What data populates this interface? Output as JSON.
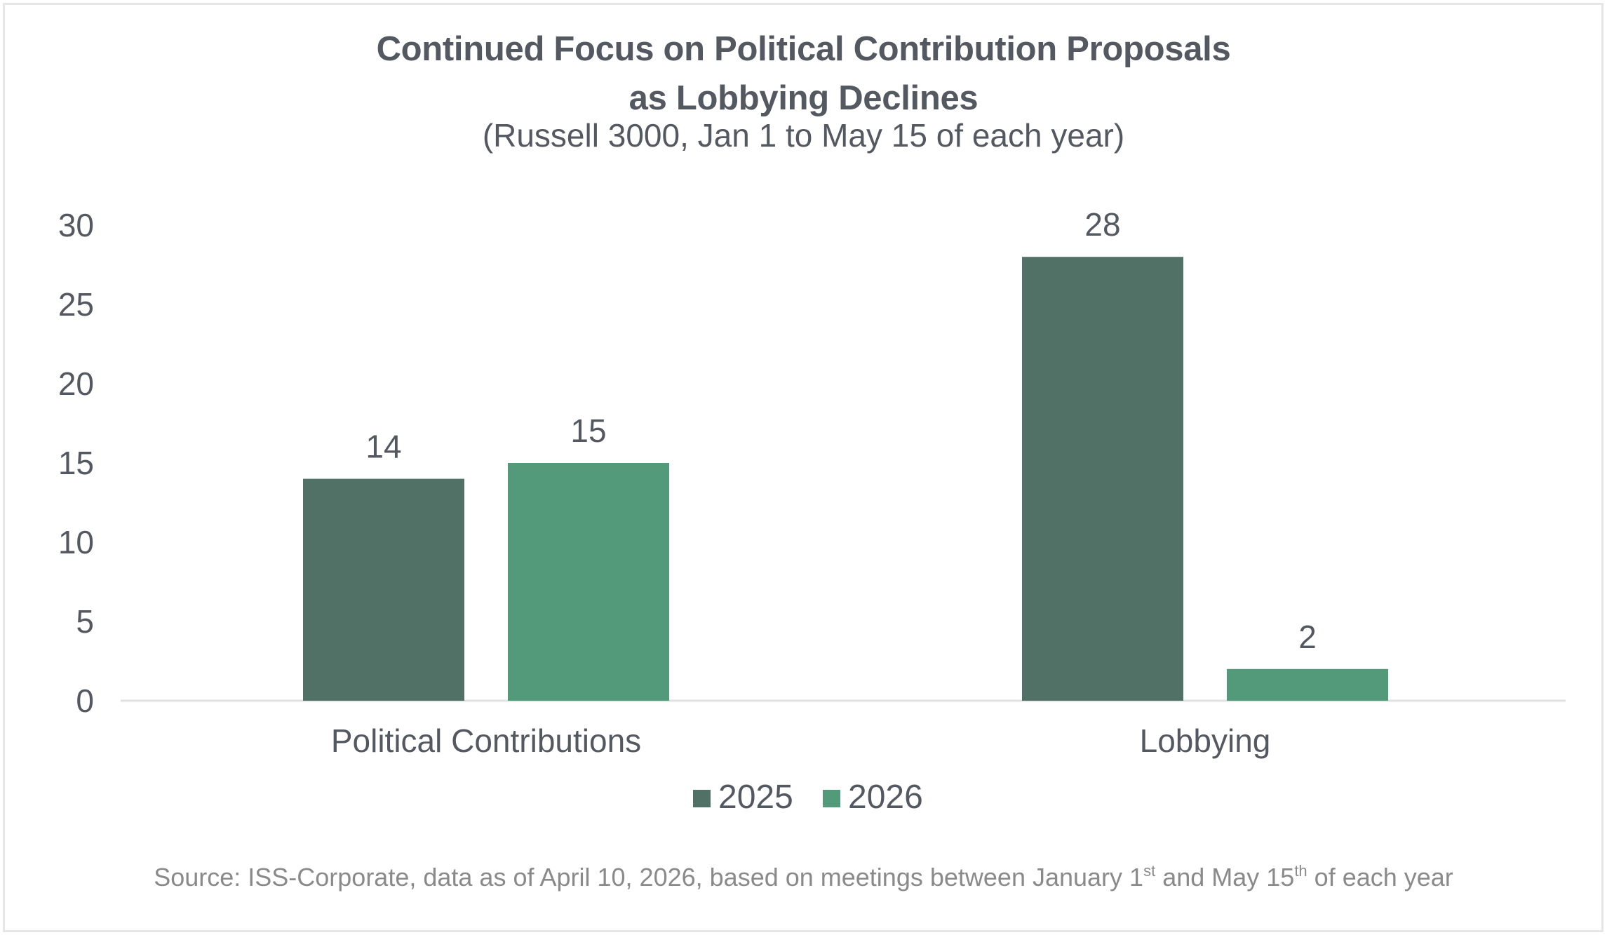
{
  "chart_data": {
    "type": "bar",
    "title": "Continued Focus on Political Contribution Proposals as Lobbying Declines",
    "title_lines": [
      "Continued Focus on Political Contribution Proposals",
      "as Lobbying Declines"
    ],
    "subtitle": "(Russell 3000, Jan 1 to May 15 of each year)",
    "categories": [
      "Political Contributions",
      "Lobbying"
    ],
    "series": [
      {
        "name": "2025",
        "color": "#517066",
        "values": [
          14,
          28
        ]
      },
      {
        "name": "2026",
        "color": "#529a79",
        "values": [
          15,
          2
        ]
      }
    ],
    "xlabel": "",
    "ylabel": "",
    "ylim": [
      0,
      30
    ],
    "yticks": [
      0,
      5,
      10,
      15,
      20,
      25,
      30
    ],
    "grid": false,
    "data_labels": true,
    "legend": {
      "position": "bottom",
      "entries": [
        "2025",
        "2026"
      ]
    },
    "source": {
      "prefix": "Source: ISS-Corporate, data as of April 10, 2026, based on meetings between January 1",
      "sup1": "st",
      "middle": " and May 15",
      "sup2": "th",
      "suffix": " of each year"
    }
  },
  "colors": {
    "text": "#545860",
    "axis": "#e0e0e0",
    "source_text": "#8a8a8a",
    "border": "#e6e6e6"
  }
}
